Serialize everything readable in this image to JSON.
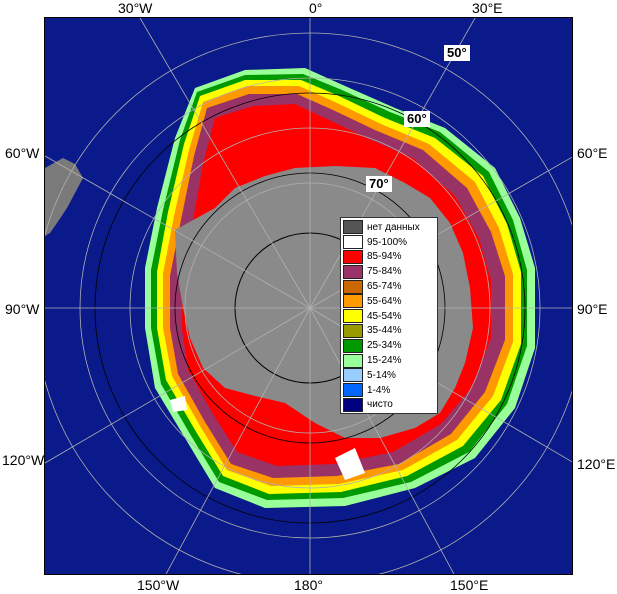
{
  "map": {
    "meridian_labels": {
      "top": [
        "30°W",
        "0°",
        "30°E"
      ],
      "left": [
        "60°W",
        "90°W",
        "120°W"
      ],
      "right": [
        "60°E",
        "90°E",
        "120°E"
      ],
      "bottom": [
        "150°W",
        "180°",
        "150°E"
      ]
    },
    "latitude_labels": [
      "50°",
      "60°",
      "70°"
    ],
    "colors": {
      "ocean": "#0a1a8a",
      "land": "#8a8a8a",
      "land_dark": "#5a5a5a",
      "grid": "#b0b0b0"
    }
  },
  "legend": {
    "items": [
      {
        "label": "нет данных",
        "color": "#555555"
      },
      {
        "label": "95-100%",
        "color": "#ffffff"
      },
      {
        "label": "85-94%",
        "color": "#ff0000"
      },
      {
        "label": "75-84%",
        "color": "#993366"
      },
      {
        "label": "65-74%",
        "color": "#cc6600"
      },
      {
        "label": "55-64%",
        "color": "#ff9900"
      },
      {
        "label": "45-54%",
        "color": "#ffff00"
      },
      {
        "label": "35-44%",
        "color": "#999900"
      },
      {
        "label": "25-34%",
        "color": "#009900"
      },
      {
        "label": "15-24%",
        "color": "#99ff99"
      },
      {
        "label": "5-14%",
        "color": "#99ccff"
      },
      {
        "label": "1-4%",
        "color": "#0066ff"
      },
      {
        "label": "чисто",
        "color": "#000080"
      }
    ]
  }
}
